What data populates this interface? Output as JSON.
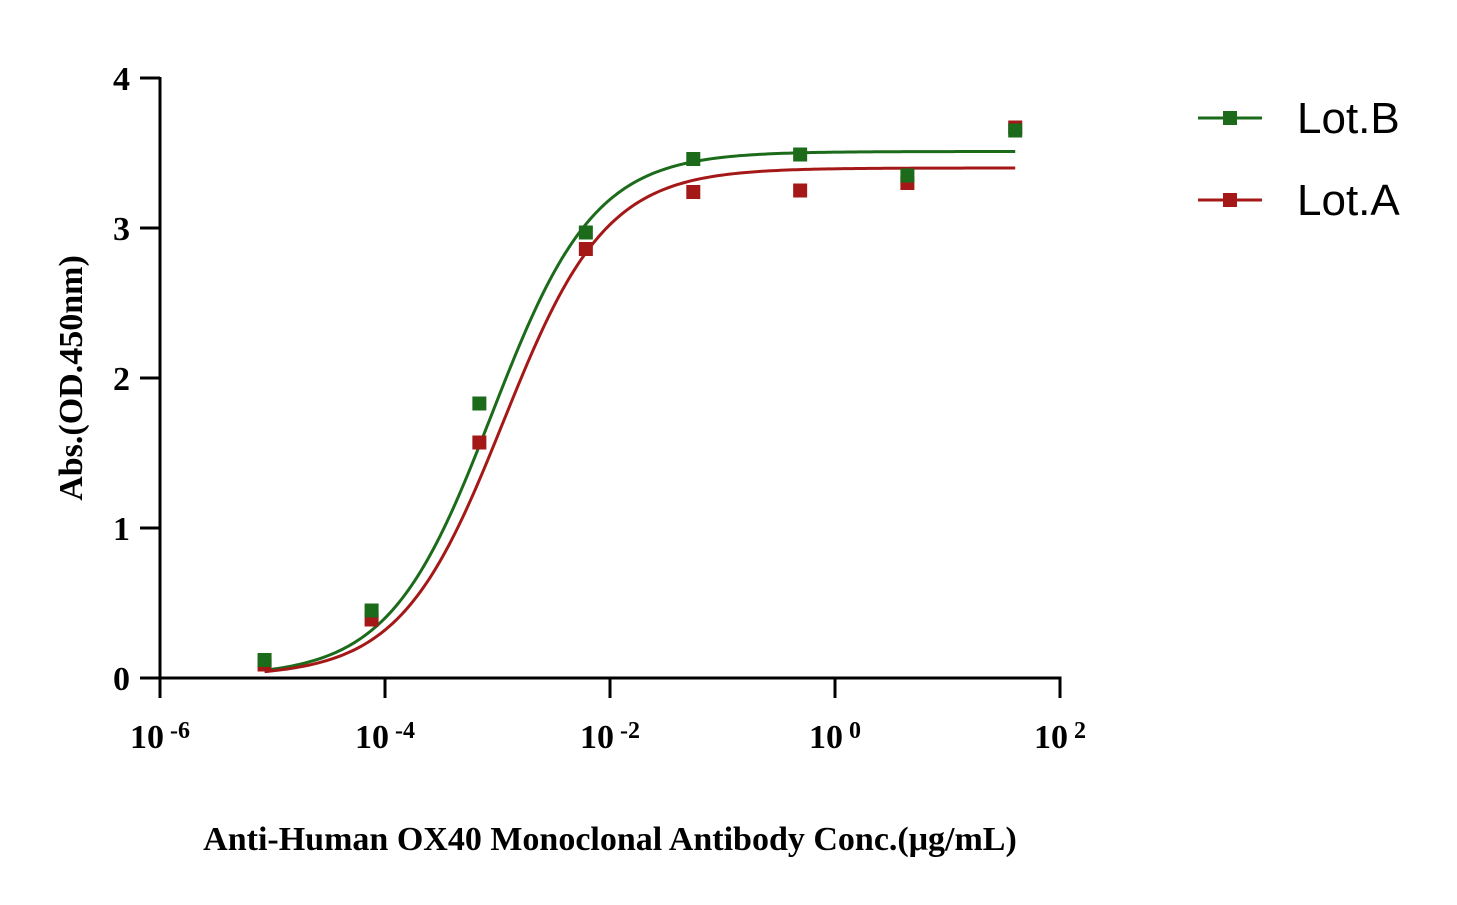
{
  "chart_data": {
    "type": "scatter",
    "title": "",
    "xlabel": "Anti-Human OX40 Monoclonal Antibody Conc.(μg/mL)",
    "ylabel": "Abs.(OD.450nm)",
    "xscale": "log10",
    "xlim": [
      1e-06,
      100
    ],
    "ylim": [
      0,
      4
    ],
    "yticks": [
      "0",
      "1",
      "2",
      "3",
      "4"
    ],
    "xticks": [
      {
        "base": "10",
        "exp": "-6"
      },
      {
        "base": "10",
        "exp": "-4"
      },
      {
        "base": "10",
        "exp": "-2"
      },
      {
        "base": "10",
        "exp": "0"
      },
      {
        "base": "10",
        "exp": "2"
      }
    ],
    "legend_position": "top-right",
    "series": [
      {
        "name": "Lot.B",
        "color": "#1b6b1b",
        "x": [
          8.5e-06,
          7.6e-05,
          0.00069,
          0.0061,
          0.055,
          0.49,
          4.4,
          40
        ],
        "y": [
          0.12,
          0.45,
          1.83,
          2.97,
          3.46,
          3.49,
          3.35,
          3.65
        ],
        "curve": {
          "bottom": 0.01,
          "top": 3.51,
          "logEC50": -3.05,
          "hill": 0.95
        }
      },
      {
        "name": "Lot.A",
        "color": "#a51818",
        "x": [
          8.5e-06,
          7.6e-05,
          0.00069,
          0.0061,
          0.055,
          0.49,
          4.4,
          40
        ],
        "y": [
          0.09,
          0.39,
          1.57,
          2.86,
          3.24,
          3.25,
          3.3,
          3.67
        ],
        "curve": {
          "bottom": 0.01,
          "top": 3.4,
          "logEC50": -2.95,
          "hill": 0.95
        }
      }
    ]
  }
}
